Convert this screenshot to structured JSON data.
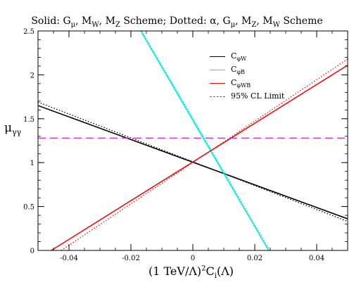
{
  "header": {
    "part1": "Solid: G",
    "sub1": "μ",
    "part2": ", M",
    "sub2": "W",
    "part3": ", M",
    "sub3": "Z",
    "part4": " Scheme;  Dotted: α, G",
    "sub4": "μ",
    "part5": ", M",
    "sub5": "Z",
    "part6": ",  M",
    "sub6": "W",
    "part7": " Scheme"
  },
  "axes": {
    "ylabel_main": "μ",
    "ylabel_sub": "γγ",
    "xlabel_a": "(1 TeV/Λ)",
    "xlabel_sup": "2",
    "xlabel_b": "C",
    "xlabel_sub": "i",
    "xlabel_c": "(Λ)"
  },
  "legend": {
    "items": [
      {
        "main": "C",
        "sub": "φW",
        "color": "#000000",
        "dash": "solid"
      },
      {
        "main": "C",
        "sub": "φB",
        "color": "#00e5e5",
        "dash": "solid"
      },
      {
        "main": "C",
        "sub": "φWB",
        "color": "#e8120f",
        "dash": "solid"
      },
      {
        "main": "95% CL Limit",
        "sub": "",
        "color": "#cc22cc",
        "dash": "dashed"
      }
    ]
  },
  "chart_data": {
    "type": "line",
    "xlim": [
      -0.05,
      0.05
    ],
    "ylim": [
      0,
      2.5
    ],
    "xticks": [
      -0.04,
      -0.02,
      0,
      0.02,
      0.04
    ],
    "xticklabels": [
      "-0.04",
      "-0.02",
      "0",
      "0.02",
      "0.04"
    ],
    "yticks": [
      0,
      0.5,
      1,
      1.5,
      2,
      2.5
    ],
    "yticklabels": [
      "0",
      "0.5",
      "1",
      "1.5",
      "2",
      "2.5"
    ],
    "grid": false,
    "legend_position": "top-right",
    "series": [
      {
        "name": "C_φW",
        "scheme": "solid",
        "color": "#000000",
        "x": [
          -0.05,
          0.05
        ],
        "y": [
          1.65,
          0.36
        ]
      },
      {
        "name": "C_φW",
        "scheme": "dotted",
        "color": "#000000",
        "x": [
          -0.05,
          0.05
        ],
        "y": [
          1.69,
          0.33
        ]
      },
      {
        "name": "C_φB",
        "scheme": "solid",
        "color": "#00e5e5",
        "x": [
          -0.0168,
          0.0245
        ],
        "y": [
          2.5,
          0.0
        ]
      },
      {
        "name": "C_φB",
        "scheme": "dotted",
        "color": "#00e5e5",
        "x": [
          -0.0165,
          0.025
        ],
        "y": [
          2.5,
          0.0
        ]
      },
      {
        "name": "C_φWB",
        "scheme": "solid",
        "color": "#e8120f",
        "x": [
          -0.0457,
          0.05
        ],
        "y": [
          0.0,
          2.11
        ]
      },
      {
        "name": "C_φWB",
        "scheme": "dotted",
        "color": "#e8120f",
        "x": [
          -0.0425,
          0.05
        ],
        "y": [
          0.0,
          2.18
        ]
      },
      {
        "name": "95% CL Limit",
        "scheme": "dashed",
        "color": "#cc22cc",
        "x": [
          -0.05,
          0.05
        ],
        "y": [
          1.28,
          1.28
        ]
      }
    ]
  }
}
